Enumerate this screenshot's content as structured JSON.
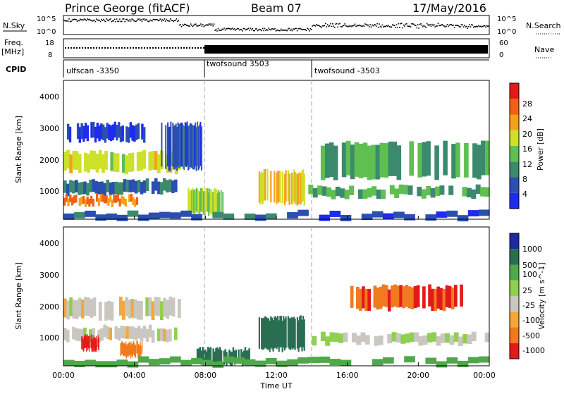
{
  "header": {
    "station": "Prince George (fitACF)",
    "beam": "Beam 07",
    "date": "17/May/2016"
  },
  "top_panels": {
    "nsky_label": "N.Sky",
    "nsky_ticks": [
      "10^5",
      "10^0"
    ],
    "nsearch_label": "N.Search",
    "nsearch_ticks": [
      "10^5",
      "10^0"
    ],
    "freq_label": "Freq.",
    "freq_unit": "[MHz]",
    "freq_ticks": [
      "18",
      "8"
    ],
    "nave_label": "Nave",
    "nave_ticks": [
      "60",
      "0"
    ],
    "cpid_label": "CPID",
    "cpid_segments": [
      {
        "label": "ulfscan -3350",
        "start": "00:00"
      },
      {
        "label": "twofsound 3503",
        "start": "08:00"
      },
      {
        "label": "twofsound -3503",
        "start": "14:00"
      }
    ]
  },
  "axes": {
    "xlabel": "Time UT",
    "ylabel": "Slant Range [km]",
    "xticks": [
      "00:00",
      "04:00",
      "08:00",
      "12:00",
      "16:00",
      "20:00",
      "00:00"
    ],
    "yticks": [
      "1000",
      "2000",
      "3000",
      "4000"
    ]
  },
  "chart_data": [
    {
      "type": "heatmap",
      "panel": "power",
      "xlabel": "Time UT",
      "ylabel": "Slant Range [km]",
      "x_range_hours": [
        0,
        24
      ],
      "ylim": [
        180,
        4600
      ],
      "colorbar": {
        "label": "Power [dB]",
        "ticks": [
          "4",
          "8",
          "12",
          "16",
          "20",
          "24",
          "28"
        ],
        "range": [
          0,
          30
        ]
      },
      "bands": [
        {
          "t0": 0.0,
          "t1": 6.6,
          "r0": 1700,
          "r1": 2300,
          "value": 20
        },
        {
          "t0": 0.0,
          "t1": 6.4,
          "r0": 1000,
          "r1": 1400,
          "value": 10
        },
        {
          "t0": 0.0,
          "t1": 4.3,
          "r0": 650,
          "r1": 900,
          "value": 26
        },
        {
          "t0": 0.2,
          "t1": 4.6,
          "r0": 2700,
          "r1": 3200,
          "value": 6
        },
        {
          "t0": 5.5,
          "t1": 7.8,
          "r0": 1800,
          "r1": 3200,
          "value": 8
        },
        {
          "t0": 7.0,
          "t1": 9.0,
          "r0": 350,
          "r1": 1100,
          "value": 18
        },
        {
          "t0": 11.0,
          "t1": 13.6,
          "r0": 700,
          "r1": 1700,
          "value": 22
        },
        {
          "t0": 13.8,
          "t1": 24.0,
          "r0": 900,
          "r1": 1200,
          "value": 14
        },
        {
          "t0": 14.5,
          "t1": 24.0,
          "r0": 1500,
          "r1": 2600,
          "value": 14
        },
        {
          "t0": 0.0,
          "t1": 24.0,
          "r0": 200,
          "r1": 400,
          "value": 8
        }
      ]
    },
    {
      "type": "heatmap",
      "panel": "velocity",
      "xlabel": "Time UT",
      "ylabel": "Slant Range [km]",
      "x_range_hours": [
        0,
        24
      ],
      "ylim": [
        180,
        4600
      ],
      "colorbar": {
        "label": "Velocity [m s^-1]",
        "ticks": [
          "1000",
          "500",
          "100",
          "25",
          "-25",
          "-100",
          "-500",
          "-1000"
        ]
      },
      "bands": [
        {
          "t0": 0.0,
          "t1": 6.6,
          "r0": 1700,
          "r1": 2300,
          "value": 0
        },
        {
          "t0": 0.0,
          "t1": 6.4,
          "r0": 1000,
          "r1": 1400,
          "value": 0
        },
        {
          "t0": 3.2,
          "t1": 4.5,
          "r0": 500,
          "r1": 900,
          "value": -200
        },
        {
          "t0": 1.0,
          "t1": 2.0,
          "r0": 700,
          "r1": 1100,
          "value": -600
        },
        {
          "t0": 7.5,
          "t1": 10.5,
          "r0": 250,
          "r1": 700,
          "value": 300
        },
        {
          "t0": 11.0,
          "t1": 13.6,
          "r0": 700,
          "r1": 1700,
          "value": 300
        },
        {
          "t0": 16.0,
          "t1": 22.5,
          "r0": 2000,
          "r1": 2700,
          "value": -500
        },
        {
          "t0": 14.0,
          "t1": 24.0,
          "r0": 900,
          "r1": 1200,
          "value": 20
        },
        {
          "t0": 0.0,
          "t1": 24.0,
          "r0": 200,
          "r1": 400,
          "value": 150
        }
      ]
    }
  ]
}
